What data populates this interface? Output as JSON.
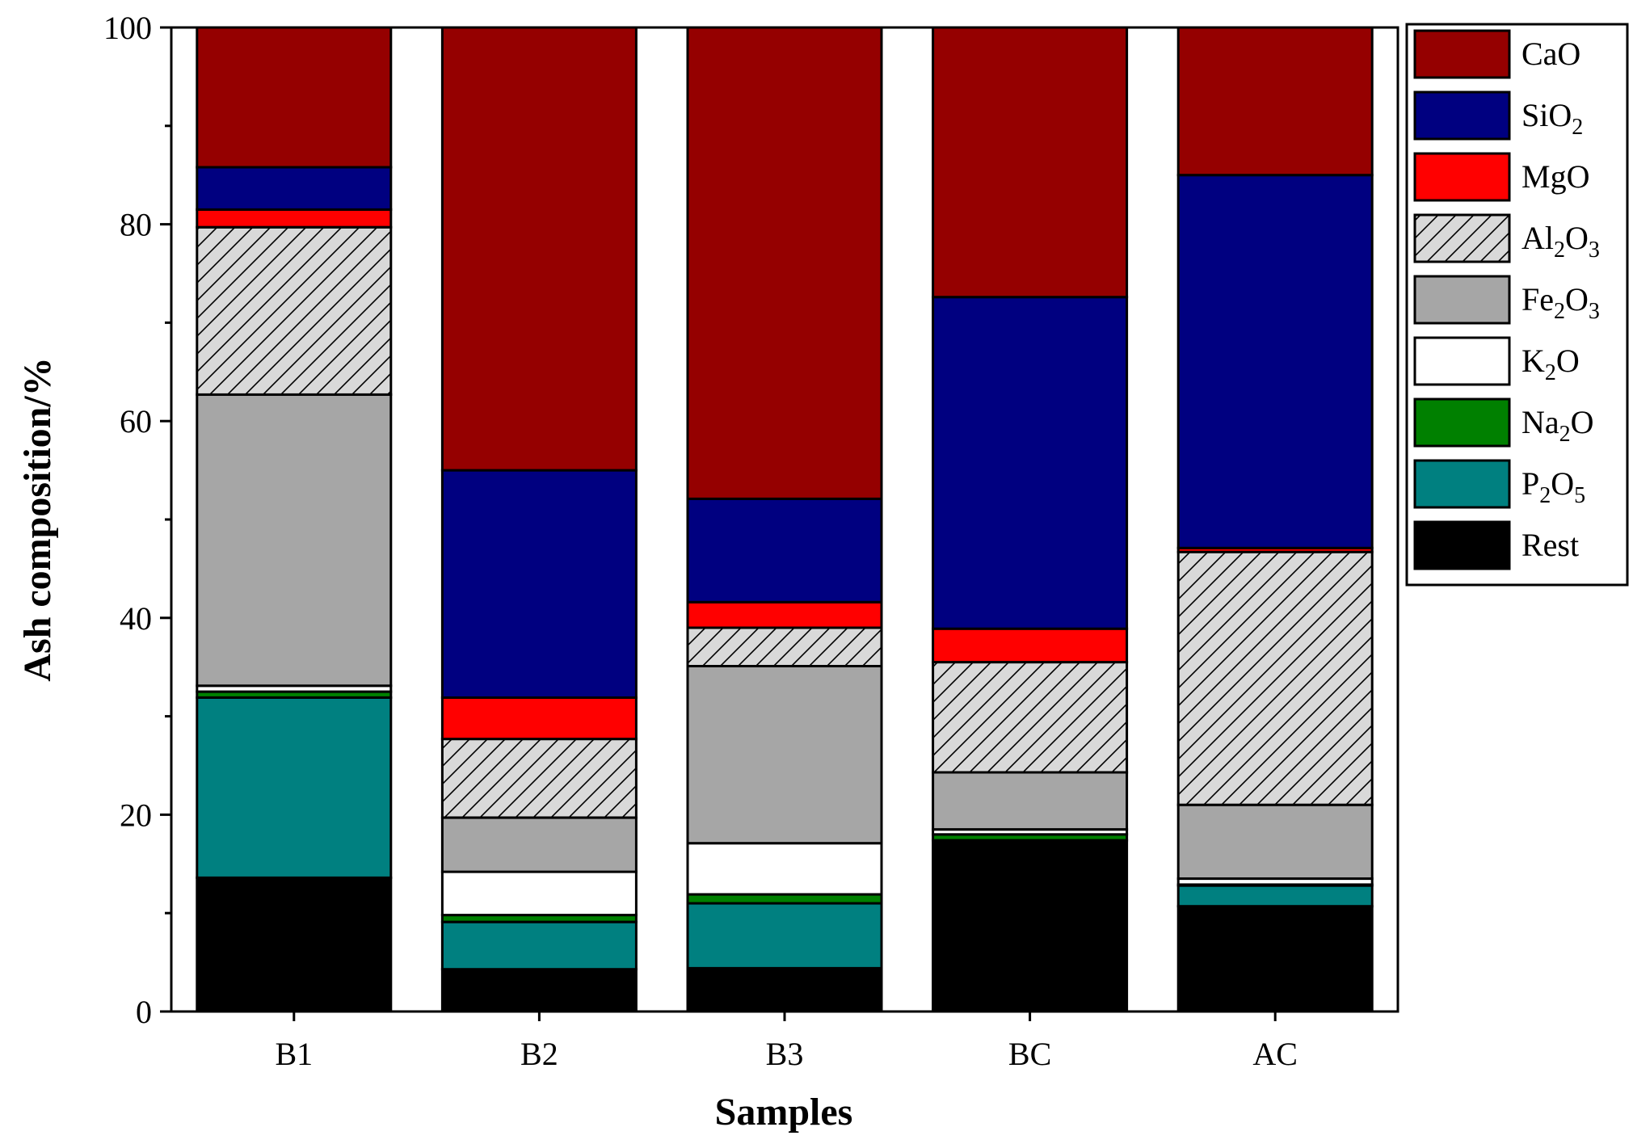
{
  "chart_data": {
    "type": "bar",
    "stacked": true,
    "title": "",
    "xlabel": "Samples",
    "ylabel": "Ash composition/%",
    "ylim": [
      0,
      100
    ],
    "yticks": [
      0,
      20,
      40,
      60,
      80,
      100
    ],
    "categories": [
      "B1",
      "B2",
      "B3",
      "BC",
      "AC"
    ],
    "legend_position": "top-right outside",
    "series": [
      {
        "name": "Rest",
        "label": {
          "main": "Rest",
          "parts": []
        },
        "color": "#000000",
        "pattern": "solid",
        "values": [
          13.6,
          4.3,
          4.4,
          17.4,
          10.7
        ]
      },
      {
        "name": "P2O5",
        "label": {
          "main": "P",
          "parts": [
            {
              "sub": "2"
            },
            {
              "text": "O"
            },
            {
              "sub": "5"
            }
          ]
        },
        "color": "#008080",
        "pattern": "solid",
        "values": [
          18.3,
          4.8,
          6.6,
          0.0,
          2.1
        ]
      },
      {
        "name": "Na2O",
        "label": {
          "main": "Na",
          "parts": [
            {
              "sub": "2"
            },
            {
              "text": "O"
            }
          ]
        },
        "color": "#008000",
        "pattern": "solid",
        "values": [
          0.6,
          0.7,
          0.9,
          0.6,
          0.1
        ]
      },
      {
        "name": "K2O",
        "label": {
          "main": "K",
          "parts": [
            {
              "sub": "2"
            },
            {
              "text": "O"
            }
          ]
        },
        "color": "#ffffff",
        "pattern": "solid",
        "values": [
          0.6,
          4.4,
          5.2,
          0.5,
          0.6
        ]
      },
      {
        "name": "Fe2O3",
        "label": {
          "main": "Fe",
          "parts": [
            {
              "sub": "2"
            },
            {
              "text": "O"
            },
            {
              "sub": "3"
            }
          ]
        },
        "color": "#a6a6a6",
        "pattern": "solid",
        "values": [
          29.6,
          5.5,
          18.0,
          5.8,
          7.5
        ]
      },
      {
        "name": "Al2O3",
        "label": {
          "main": "Al",
          "parts": [
            {
              "sub": "2"
            },
            {
              "text": "O"
            },
            {
              "sub": "3"
            }
          ]
        },
        "color": "#d9d9d9",
        "pattern": "hatch",
        "values": [
          17.0,
          8.0,
          3.9,
          11.2,
          25.7
        ]
      },
      {
        "name": "MgO",
        "label": {
          "main": "MgO",
          "parts": []
        },
        "color": "#ff0000",
        "pattern": "solid",
        "values": [
          1.8,
          4.2,
          2.6,
          3.4,
          0.4
        ]
      },
      {
        "name": "SiO2",
        "label": {
          "main": "SiO",
          "parts": [
            {
              "sub": "2"
            }
          ]
        },
        "color": "#000080",
        "pattern": "solid",
        "values": [
          4.3,
          23.1,
          10.5,
          33.7,
          37.9
        ]
      },
      {
        "name": "CaO",
        "label": {
          "main": "CaO",
          "parts": []
        },
        "color": "#950000",
        "pattern": "solid",
        "values": [
          14.2,
          45.0,
          47.9,
          27.4,
          15.0
        ]
      }
    ]
  }
}
